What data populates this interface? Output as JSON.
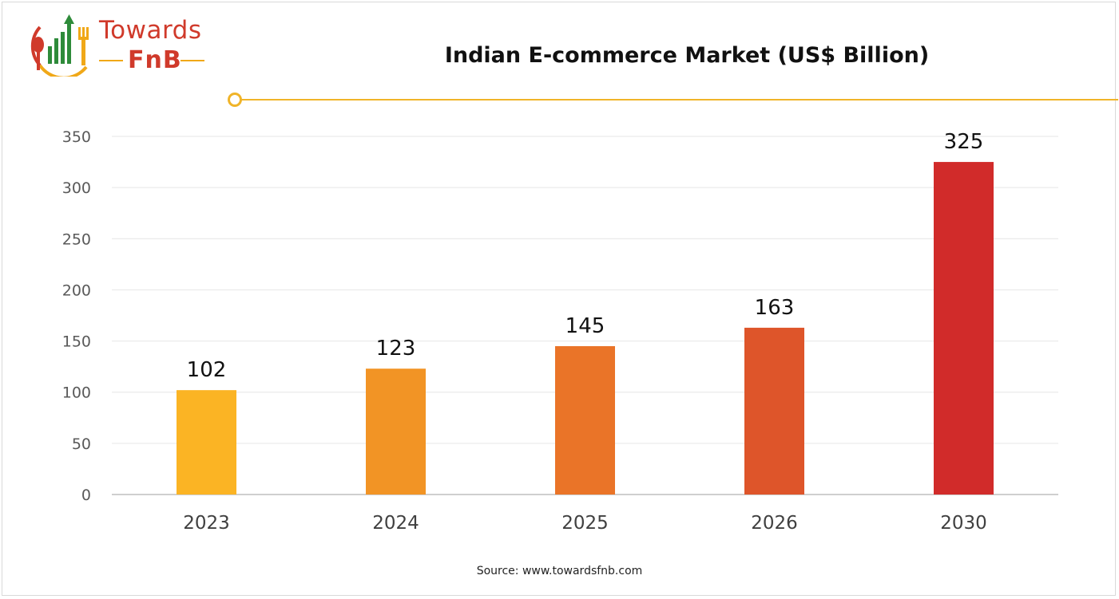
{
  "brand": {
    "name_line1": "Towards",
    "name_line2": "FnB",
    "colors": {
      "primary": "#d03a2b",
      "accent": "#f0a818",
      "green": "#2e8b3a"
    }
  },
  "source": "Source: www.towardsfnb.com",
  "chart_data": {
    "type": "bar",
    "title": "Indian E-commerce Market (US$ Billion)",
    "xlabel": "",
    "ylabel": "",
    "categories": [
      "2023",
      "2024",
      "2025",
      "2026",
      "2030"
    ],
    "values": [
      102,
      123,
      145,
      163,
      325
    ],
    "ylim": [
      0,
      350
    ],
    "yticks": [
      0,
      50,
      100,
      150,
      200,
      250,
      300,
      350
    ],
    "grid": true,
    "legend": "none",
    "bar_colors": [
      "#fbb424",
      "#f29425",
      "#ea7428",
      "#de552a",
      "#d12b2a"
    ]
  }
}
